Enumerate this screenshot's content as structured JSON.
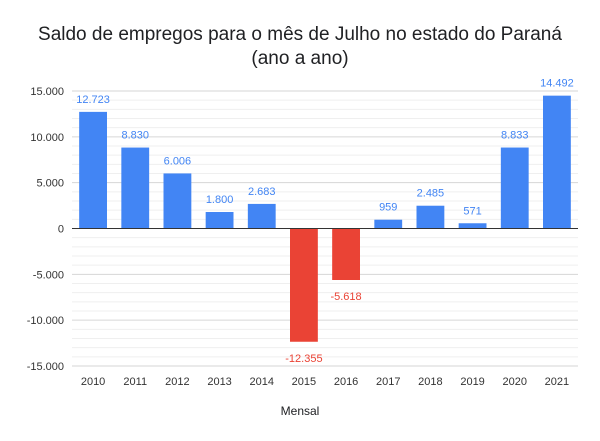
{
  "chart_data": {
    "type": "bar",
    "title_line1": "Saldo de empregos para o mês de Julho no estado do Paraná",
    "title_line2": "(ano a ano)",
    "xlabel": "Mensal",
    "ylabel": "",
    "ylim": [
      -15000,
      15000
    ],
    "yticks": [
      15000,
      10000,
      5000,
      0,
      -5000,
      -10000,
      -15000
    ],
    "ytick_labels": [
      "15.000",
      "10.000",
      "5.000",
      "0",
      "-5.000",
      "-10.000",
      "-15.000"
    ],
    "grid": true,
    "categories": [
      "2010",
      "2011",
      "2012",
      "2013",
      "2014",
      "2015",
      "2016",
      "2017",
      "2018",
      "2019",
      "2020",
      "2021"
    ],
    "values": [
      12723,
      8830,
      6006,
      1800,
      2683,
      -12355,
      -5618,
      959,
      2485,
      571,
      8833,
      14492
    ],
    "value_labels": [
      "12.723",
      "8.830",
      "6.006",
      "1.800",
      "2.683",
      "-12.355",
      "-5.618",
      "959",
      "2.485",
      "571",
      "8.833",
      "14.492"
    ],
    "colors": {
      "positive": "#4285f4",
      "negative": "#ea4335",
      "grid": "#e0e0e0",
      "axis": "#333333"
    }
  }
}
